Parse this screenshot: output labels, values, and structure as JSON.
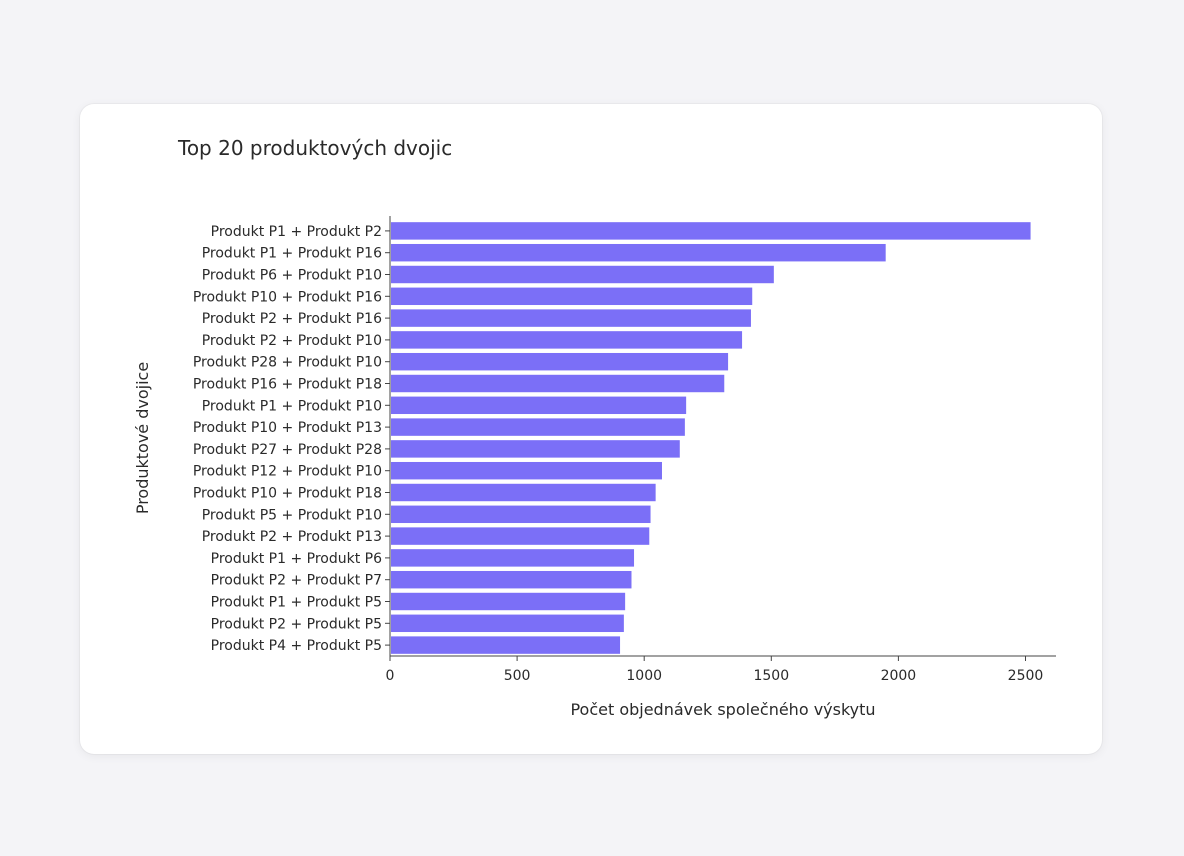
{
  "chart_data": {
    "type": "bar",
    "orientation": "horizontal",
    "title": "Top 20 produktových dvojic",
    "xlabel": "Počet objednávek společného výskytu",
    "ylabel": "Produktové dvojice",
    "xlim": [
      0,
      2620
    ],
    "xticks": [
      0,
      500,
      1000,
      1500,
      2000,
      2500
    ],
    "bar_color": "#7b6ff7",
    "grid": false,
    "categories": [
      "Produkt P1 + Produkt P2",
      "Produkt P1 + Produkt P16",
      "Produkt P6 + Produkt P10",
      "Produkt P10 + Produkt P16",
      "Produkt P2 + Produkt P16",
      "Produkt P2 + Produkt P10",
      "Produkt P28 + Produkt P10",
      "Produkt P16 + Produkt P18",
      "Produkt P1 + Produkt P10",
      "Produkt P10 + Produkt P13",
      "Produkt P27 + Produkt P28",
      "Produkt P12 + Produkt P10",
      "Produkt P10 + Produkt P18",
      "Produkt P5 + Produkt P10",
      "Produkt P2 + Produkt P13",
      "Produkt P1 + Produkt P6",
      "Produkt P2 + Produkt P7",
      "Produkt P1 + Produkt P5",
      "Produkt P2 + Produkt P5",
      "Produkt P4 + Produkt P5"
    ],
    "values": [
      2520,
      1950,
      1510,
      1425,
      1420,
      1385,
      1330,
      1315,
      1165,
      1160,
      1140,
      1070,
      1045,
      1025,
      1020,
      960,
      950,
      925,
      920,
      905
    ]
  }
}
